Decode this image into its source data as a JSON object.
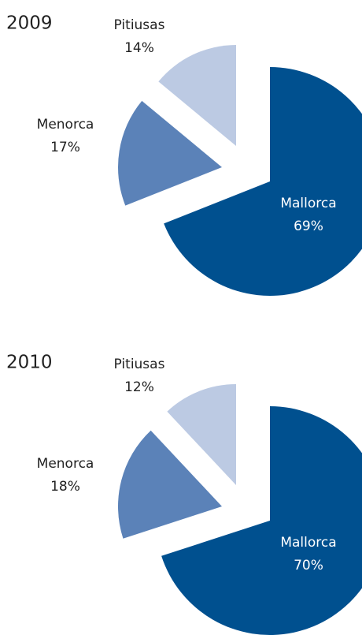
{
  "chart_data": [
    {
      "type": "pie",
      "title": "2009",
      "categories": [
        "Mallorca",
        "Menorca",
        "Pitiusas"
      ],
      "values": [
        69,
        17,
        14
      ],
      "value_labels": [
        "69%",
        "17%",
        "14%"
      ],
      "colors": [
        "#00508f",
        "#5b82b8",
        "#bccae3"
      ]
    },
    {
      "type": "pie",
      "title": "2010",
      "categories": [
        "Mallorca",
        "Menorca",
        "Pitiusas"
      ],
      "values": [
        70,
        18,
        12
      ],
      "value_labels": [
        "70%",
        "18%",
        "12%"
      ],
      "colors": [
        "#00508f",
        "#5b82b8",
        "#bccae3"
      ]
    }
  ]
}
